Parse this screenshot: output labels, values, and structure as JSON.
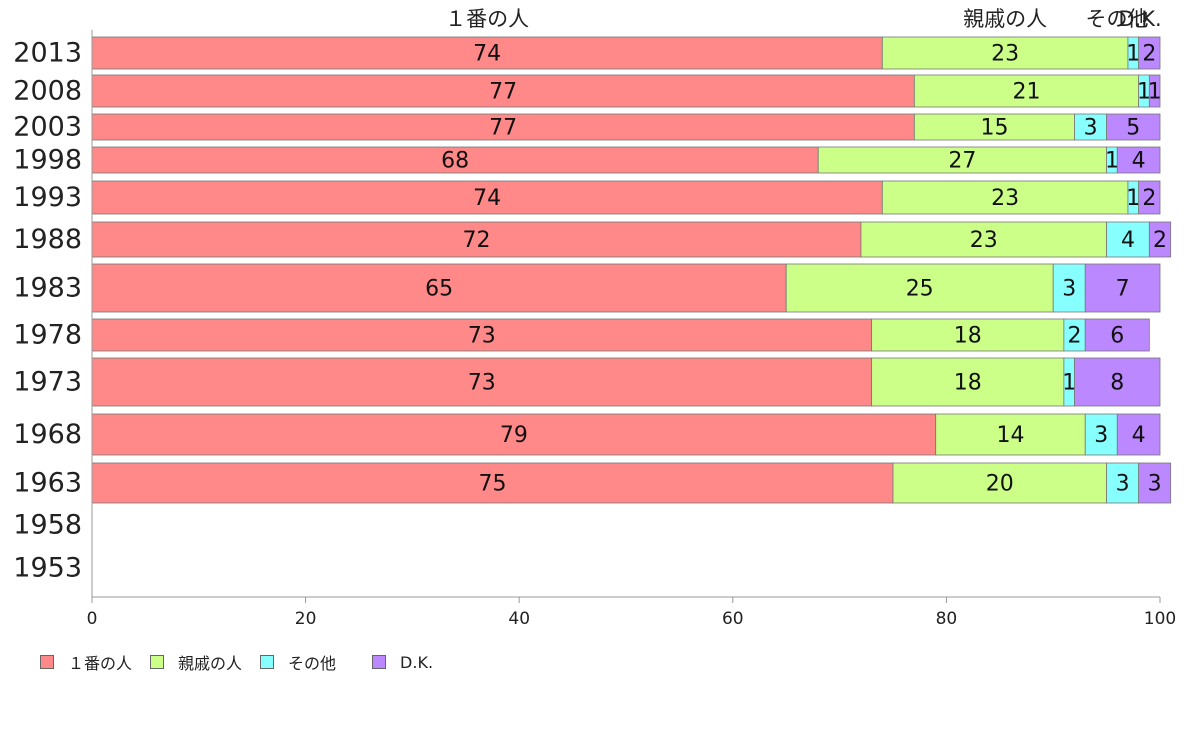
{
  "chart_data": {
    "type": "bar",
    "orientation": "horizontal",
    "stacked": true,
    "categories": [
      "2013",
      "2008",
      "2003",
      "1998",
      "1993",
      "1988",
      "1983",
      "1978",
      "1973",
      "1968",
      "1963",
      "1958",
      "1953"
    ],
    "series": [
      {
        "name": "１番の人",
        "color": "#ff8888",
        "values": [
          74,
          77,
          77,
          68,
          74,
          72,
          65,
          73,
          73,
          79,
          75,
          null,
          null
        ]
      },
      {
        "name": "親戚の人",
        "color": "#ccff88",
        "values": [
          23,
          21,
          15,
          27,
          23,
          23,
          25,
          18,
          18,
          14,
          20,
          null,
          null
        ]
      },
      {
        "name": "その他",
        "color": "#88ffff",
        "values": [
          1,
          1,
          3,
          1,
          1,
          4,
          3,
          2,
          1,
          3,
          3,
          null,
          null
        ]
      },
      {
        "name": "D.K.",
        "color": "#bb88ff",
        "values": [
          2,
          1,
          5,
          4,
          2,
          2,
          7,
          6,
          8,
          4,
          3,
          null,
          null
        ]
      }
    ],
    "column_headers": [
      "１番の人",
      "親戚の人",
      "その他",
      "D.K."
    ],
    "xlim": [
      0,
      100
    ],
    "xticks": [
      "0",
      "20",
      "40",
      "60",
      "80",
      "100"
    ],
    "grid": false,
    "legend_position": "bottom-left"
  }
}
